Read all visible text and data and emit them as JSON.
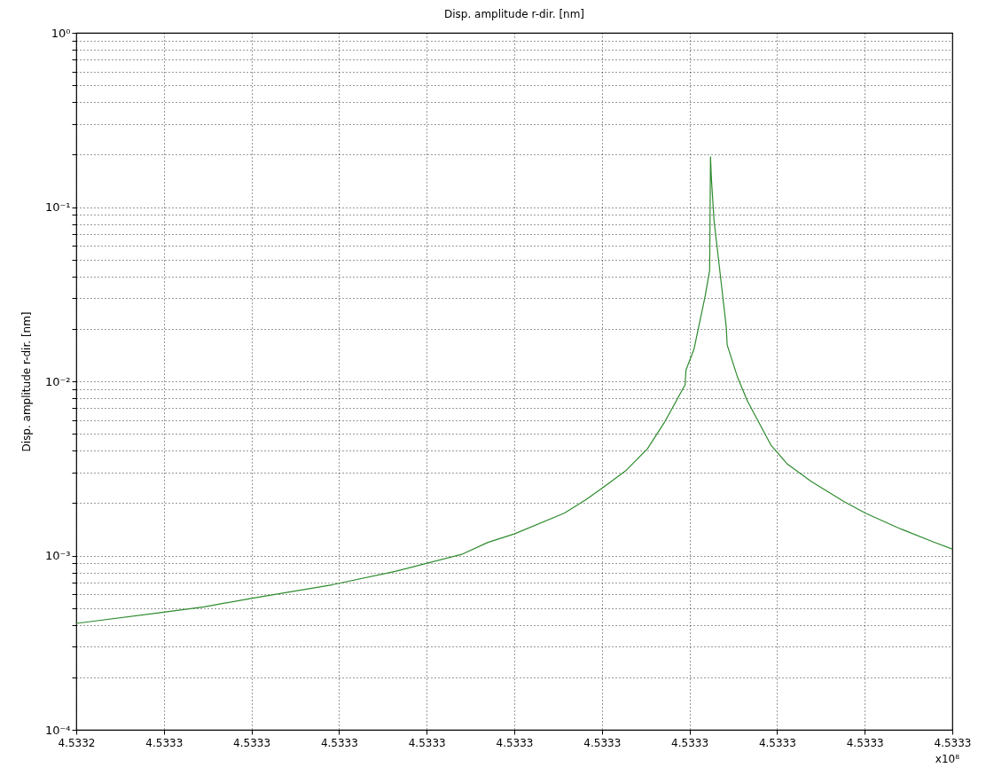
{
  "chart_data": {
    "type": "line",
    "title": "Disp. amplitude r-dir. [nm]",
    "ylabel": "Disp. amplitude r-dir. [nm]",
    "annotations": [
      "x10⁸"
    ],
    "x": [
      4.53324,
      4.53325,
      4.5332546,
      4.5332601,
      4.5332693,
      4.5332764,
      4.5332841,
      4.533287,
      4.53329,
      4.5332957,
      4.5332981,
      4.5333001,
      4.5333027,
      4.5333052,
      4.5333071,
      4.5333095,
      4.5333096,
      4.5333105,
      4.5333118,
      4.5333123,
      4.5333124,
      4.5333125,
      4.5333128,
      4.5333135,
      4.5333142,
      4.5333143,
      4.5333155,
      4.5333166,
      4.5333193,
      4.5333212,
      4.5333239,
      4.5333277,
      4.5333301,
      4.5333337,
      4.5333378,
      4.53334
    ],
    "series": [
      {
        "color": "#2e8b2e",
        "values": [
          0.000408,
          0.000473,
          0.000508,
          0.000569,
          0.000681,
          0.000811,
          0.00102,
          0.00119,
          0.00133,
          0.00175,
          0.00208,
          0.00245,
          0.00306,
          0.0041,
          0.00577,
          0.00955,
          0.0116,
          0.0152,
          0.031,
          0.0433,
          0.194,
          0.146,
          0.084,
          0.0415,
          0.0204,
          0.0162,
          0.0105,
          0.00773,
          0.0043,
          0.00334,
          0.00266,
          0.00203,
          0.00175,
          0.00145,
          0.0012,
          0.00109
        ]
      }
    ],
    "xlim": [
      4.53324,
      4.53334
    ],
    "xticks": [
      {
        "value": 4.53324,
        "label": "4.5332"
      },
      {
        "value": 4.53325,
        "label": "4.5333"
      },
      {
        "value": 4.53326,
        "label": "4.5333"
      },
      {
        "value": 4.53327,
        "label": "4.5333"
      },
      {
        "value": 4.53328,
        "label": "4.5333"
      },
      {
        "value": 4.53329,
        "label": "4.5333"
      },
      {
        "value": 4.5333,
        "label": "4.5333"
      },
      {
        "value": 4.53331,
        "label": "4.5333"
      },
      {
        "value": 4.53332,
        "label": "4.5333"
      },
      {
        "value": 4.53333,
        "label": "4.5333"
      },
      {
        "value": 4.53334,
        "label": "4.5333"
      }
    ],
    "ylim": [
      0.0001,
      1
    ],
    "yticks": [
      {
        "value": 0.0001,
        "label": "10⁻⁴"
      },
      {
        "value": 0.0002,
        "label": null
      },
      {
        "value": 0.0003,
        "label": null
      },
      {
        "value": 0.0004,
        "label": null
      },
      {
        "value": 0.0005,
        "label": null
      },
      {
        "value": 0.0006,
        "label": null
      },
      {
        "value": 0.0007,
        "label": null
      },
      {
        "value": 0.0008,
        "label": null
      },
      {
        "value": 0.0009,
        "label": null
      },
      {
        "value": 0.001,
        "label": "10⁻³"
      },
      {
        "value": 0.002,
        "label": null
      },
      {
        "value": 0.003,
        "label": null
      },
      {
        "value": 0.004,
        "label": null
      },
      {
        "value": 0.005,
        "label": null
      },
      {
        "value": 0.006,
        "label": null
      },
      {
        "value": 0.007,
        "label": null
      },
      {
        "value": 0.008,
        "label": null
      },
      {
        "value": 0.009,
        "label": null
      },
      {
        "value": 0.01,
        "label": "10⁻²"
      },
      {
        "value": 0.02,
        "label": null
      },
      {
        "value": 0.03,
        "label": null
      },
      {
        "value": 0.04,
        "label": null
      },
      {
        "value": 0.05,
        "label": null
      },
      {
        "value": 0.06,
        "label": null
      },
      {
        "value": 0.07,
        "label": null
      },
      {
        "value": 0.08,
        "label": null
      },
      {
        "value": 0.09,
        "label": null
      },
      {
        "value": 0.1,
        "label": "10⁻¹"
      },
      {
        "value": 0.2,
        "label": null
      },
      {
        "value": 0.3,
        "label": null
      },
      {
        "value": 0.4,
        "label": null
      },
      {
        "value": 0.5,
        "label": null
      },
      {
        "value": 0.6,
        "label": null
      },
      {
        "value": 0.7,
        "label": null
      },
      {
        "value": 0.8,
        "label": null
      },
      {
        "value": 0.9,
        "label": null
      },
      {
        "value": 1,
        "label": "10⁰"
      }
    ],
    "log": true,
    "grid": true
  }
}
